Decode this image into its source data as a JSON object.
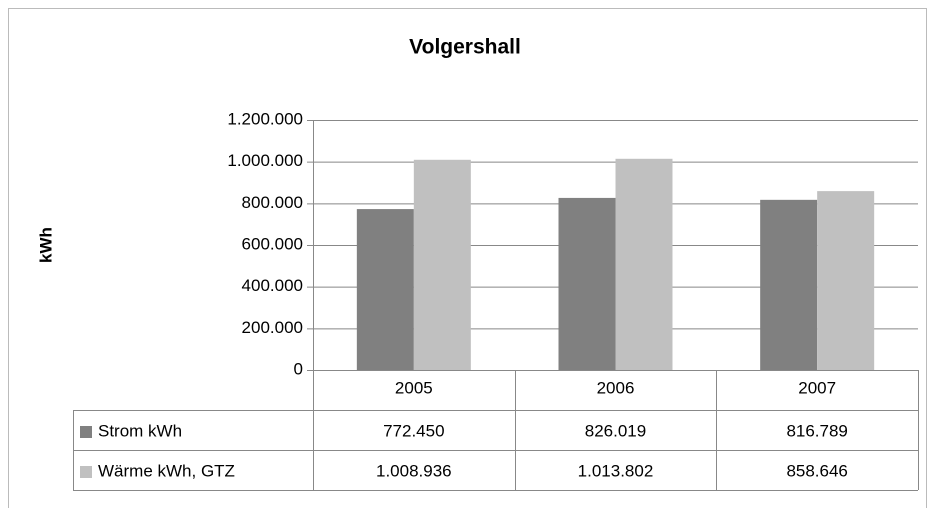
{
  "chart_data": {
    "type": "bar",
    "title": "Volgershall",
    "y_label": "kWh",
    "categories": [
      "2005",
      "2006",
      "2007"
    ],
    "series": [
      {
        "name": "Strom kWh",
        "color": "#808080",
        "values": [
          772450,
          826019,
          816789
        ],
        "value_labels": [
          "772.450",
          "826.019",
          "816.789"
        ]
      },
      {
        "name": "Wärme kWh, GTZ",
        "color": "#c0c0c0",
        "values": [
          1008936,
          1013802,
          858646
        ],
        "value_labels": [
          "1.008.936",
          "1.013.802",
          "858.646"
        ]
      }
    ],
    "ylim": [
      0,
      1200000
    ],
    "yticks": [
      0,
      {
        "value": 200000,
        "label": "200.000"
      },
      {
        "value": 400000,
        "label": "400.000"
      },
      {
        "value": 600000,
        "label": "600.000"
      },
      {
        "value": 800000,
        "label": "800.000"
      },
      {
        "value": 1000000,
        "label": "1.000.000"
      },
      {
        "value": 1200000,
        "label": "1.200.000"
      }
    ],
    "grid": true,
    "data_table": true
  }
}
